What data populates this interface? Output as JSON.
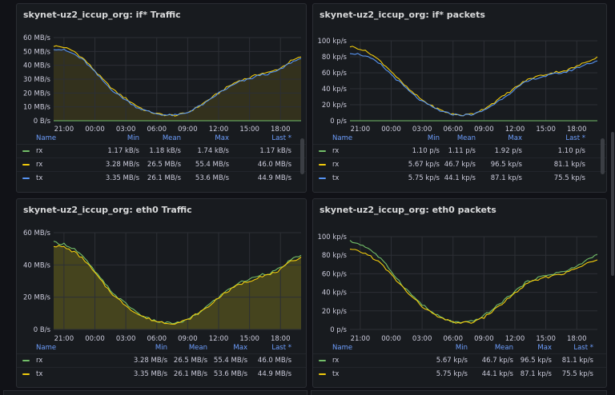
{
  "panels": [
    {
      "title": "skynet-uz2_iccup_org: if* Traffic",
      "legend": {
        "headers": [
          "Name",
          "Min",
          "Mean",
          "Max",
          "Last *"
        ],
        "rows": [
          {
            "name": "rx",
            "color": "#73bf69",
            "min": "1.17 kB/s",
            "mean": "1.18 kB/s",
            "max": "1.74 kB/s",
            "last": "1.17 kB/s"
          },
          {
            "name": "rx",
            "color": "#f2cc0c",
            "min": "3.28 MB/s",
            "mean": "26.5 MB/s",
            "max": "55.4 MB/s",
            "last": "46.0 MB/s"
          },
          {
            "name": "tx",
            "color": "#5794f2",
            "min": "3.35 MB/s",
            "mean": "26.1 MB/s",
            "max": "53.6 MB/s",
            "last": "44.9 MB/s"
          }
        ]
      },
      "y_ticks": [
        "60 MB/s",
        "50 MB/s",
        "40 MB/s",
        "30 MB/s",
        "20 MB/s",
        "10 MB/s",
        "0 B/s"
      ],
      "x_ticks": [
        "21:00",
        "00:00",
        "03:00",
        "06:00",
        "09:00",
        "12:00",
        "15:00",
        "18:00"
      ]
    },
    {
      "title": "skynet-uz2_iccup_org: if* packets",
      "legend": {
        "headers": [
          "Name",
          "Min",
          "Mean",
          "Max",
          "Last *"
        ],
        "rows": [
          {
            "name": "rx",
            "color": "#73bf69",
            "min": "1.10 p/s",
            "mean": "1.11 p/s",
            "max": "1.92 p/s",
            "last": "1.10 p/s"
          },
          {
            "name": "rx",
            "color": "#f2cc0c",
            "min": "5.67 kp/s",
            "mean": "46.7 kp/s",
            "max": "96.5 kp/s",
            "last": "81.1 kp/s"
          },
          {
            "name": "tx",
            "color": "#5794f2",
            "min": "5.75 kp/s",
            "mean": "44.1 kp/s",
            "max": "87.1 kp/s",
            "last": "75.5 kp/s"
          }
        ]
      },
      "y_ticks": [
        "100 kp/s",
        "80 kp/s",
        "60 kp/s",
        "40 kp/s",
        "20 kp/s",
        "0 p/s"
      ],
      "x_ticks": [
        "21:00",
        "00:00",
        "03:00",
        "06:00",
        "09:00",
        "12:00",
        "15:00",
        "18:00"
      ]
    },
    {
      "title": "skynet-uz2_iccup_org: eth0 Traffic",
      "legend": {
        "headers": [
          "Name",
          "Min",
          "Mean",
          "Max",
          "Last *"
        ],
        "rows": [
          {
            "name": "rx",
            "color": "#73bf69",
            "min": "3.28 MB/s",
            "mean": "26.5 MB/s",
            "max": "55.4 MB/s",
            "last": "46.0 MB/s"
          },
          {
            "name": "tx",
            "color": "#f2cc0c",
            "min": "3.35 MB/s",
            "mean": "26.1 MB/s",
            "max": "53.6 MB/s",
            "last": "44.9 MB/s"
          }
        ]
      },
      "y_ticks": [
        "60 MB/s",
        "40 MB/s",
        "20 MB/s",
        "0 B/s"
      ],
      "x_ticks": [
        "21:00",
        "00:00",
        "03:00",
        "06:00",
        "09:00",
        "12:00",
        "15:00",
        "18:00"
      ]
    },
    {
      "title": "skynet-uz2_iccup_org: eth0 packets",
      "legend": {
        "headers": [
          "Name",
          "Min",
          "Mean",
          "Max",
          "Last *"
        ],
        "rows": [
          {
            "name": "rx",
            "color": "#73bf69",
            "min": "5.67 kp/s",
            "mean": "46.7 kp/s",
            "max": "96.5 kp/s",
            "last": "81.1 kp/s"
          },
          {
            "name": "tx",
            "color": "#f2cc0c",
            "min": "5.75 kp/s",
            "mean": "44.1 kp/s",
            "max": "87.1 kp/s",
            "last": "75.5 kp/s"
          }
        ]
      },
      "y_ticks": [
        "100 kp/s",
        "80 kp/s",
        "60 kp/s",
        "40 kp/s",
        "20 kp/s",
        "0 p/s"
      ],
      "x_ticks": [
        "21:00",
        "00:00",
        "03:00",
        "06:00",
        "09:00",
        "12:00",
        "15:00",
        "18:00"
      ]
    }
  ],
  "chart_data": [
    {
      "type": "area",
      "y_unit": "MB/s",
      "ylim": [
        0,
        60
      ],
      "x": [
        "20:00",
        "21:00",
        "22:00",
        "23:00",
        "00:00",
        "01:00",
        "02:00",
        "03:00",
        "04:00",
        "05:00",
        "06:00",
        "07:00",
        "08:00",
        "09:00",
        "10:00",
        "11:00",
        "12:00",
        "13:00",
        "14:00",
        "15:00",
        "16:00",
        "17:00",
        "18:00",
        "19:00",
        "20:00"
      ],
      "series": [
        {
          "name": "rx",
          "color": "#73bf69",
          "values": [
            0,
            0,
            0,
            0,
            0,
            0,
            0,
            0,
            0,
            0,
            0,
            0,
            0,
            0,
            0,
            0,
            0,
            0,
            0,
            0,
            0,
            0,
            0,
            0,
            0
          ]
        },
        {
          "name": "rx",
          "color": "#f2cc0c",
          "values": [
            54,
            53,
            50,
            44,
            36,
            28,
            21,
            16,
            11,
            7,
            5,
            4,
            4,
            6,
            10,
            15,
            20,
            25,
            29,
            31,
            34,
            35,
            38,
            43,
            46
          ]
        },
        {
          "name": "tx",
          "color": "#5794f2",
          "values": [
            52,
            51,
            48,
            43,
            35,
            27,
            20,
            15,
            10,
            7,
            5,
            4,
            4,
            6,
            10,
            14,
            20,
            24,
            28,
            30,
            33,
            34,
            37,
            42,
            45
          ]
        }
      ]
    },
    {
      "type": "line",
      "y_unit": "kp/s",
      "ylim": [
        0,
        100
      ],
      "x": [
        "20:00",
        "21:00",
        "22:00",
        "23:00",
        "00:00",
        "01:00",
        "02:00",
        "03:00",
        "04:00",
        "05:00",
        "06:00",
        "07:00",
        "08:00",
        "09:00",
        "10:00",
        "11:00",
        "12:00",
        "13:00",
        "14:00",
        "15:00",
        "16:00",
        "17:00",
        "18:00",
        "19:00",
        "20:00"
      ],
      "series": [
        {
          "name": "rx",
          "color": "#73bf69",
          "values": [
            0,
            0,
            0,
            0,
            0,
            0,
            0,
            0,
            0,
            0,
            0,
            0,
            0,
            0,
            0,
            0,
            0,
            0,
            0,
            0,
            0,
            0,
            0,
            0,
            0
          ]
        },
        {
          "name": "rx",
          "color": "#f2cc0c",
          "values": [
            93,
            90,
            84,
            74,
            62,
            48,
            36,
            26,
            18,
            12,
            8,
            7,
            9,
            15,
            23,
            32,
            41,
            50,
            55,
            58,
            61,
            63,
            68,
            74,
            80
          ]
        },
        {
          "name": "tx",
          "color": "#5794f2",
          "values": [
            85,
            83,
            78,
            70,
            58,
            46,
            34,
            24,
            17,
            11,
            8,
            7,
            8,
            13,
            21,
            30,
            39,
            48,
            53,
            56,
            59,
            61,
            66,
            71,
            75
          ]
        }
      ]
    },
    {
      "type": "area",
      "y_unit": "MB/s",
      "ylim": [
        0,
        60
      ],
      "x": [
        "20:00",
        "21:00",
        "22:00",
        "23:00",
        "00:00",
        "01:00",
        "02:00",
        "03:00",
        "04:00",
        "05:00",
        "06:00",
        "07:00",
        "08:00",
        "09:00",
        "10:00",
        "11:00",
        "12:00",
        "13:00",
        "14:00",
        "15:00",
        "16:00",
        "17:00",
        "18:00",
        "19:00",
        "20:00"
      ],
      "series": [
        {
          "name": "rx",
          "color": "#73bf69",
          "values": [
            54,
            53,
            50,
            44,
            36,
            28,
            21,
            16,
            11,
            7,
            5,
            4,
            4,
            6,
            10,
            15,
            20,
            25,
            29,
            31,
            34,
            35,
            38,
            43,
            46
          ]
        },
        {
          "name": "tx",
          "color": "#f2cc0c",
          "values": [
            52,
            51,
            48,
            43,
            35,
            27,
            20,
            15,
            10,
            7,
            5,
            4,
            4,
            6,
            10,
            14,
            20,
            24,
            28,
            30,
            33,
            34,
            37,
            42,
            45
          ]
        }
      ]
    },
    {
      "type": "line",
      "y_unit": "kp/s",
      "ylim": [
        0,
        100
      ],
      "x": [
        "20:00",
        "21:00",
        "22:00",
        "23:00",
        "00:00",
        "01:00",
        "02:00",
        "03:00",
        "04:00",
        "05:00",
        "06:00",
        "07:00",
        "08:00",
        "09:00",
        "10:00",
        "11:00",
        "12:00",
        "13:00",
        "14:00",
        "15:00",
        "16:00",
        "17:00",
        "18:00",
        "19:00",
        "20:00"
      ],
      "series": [
        {
          "name": "rx",
          "color": "#73bf69",
          "values": [
            95,
            92,
            86,
            76,
            63,
            49,
            37,
            27,
            18,
            12,
            8,
            7,
            9,
            15,
            23,
            32,
            41,
            50,
            55,
            58,
            61,
            63,
            68,
            75,
            81
          ]
        },
        {
          "name": "tx",
          "color": "#f2cc0c",
          "values": [
            86,
            84,
            79,
            71,
            59,
            47,
            35,
            25,
            17,
            11,
            8,
            7,
            8,
            13,
            21,
            30,
            39,
            48,
            53,
            56,
            59,
            61,
            66,
            71,
            75
          ]
        }
      ]
    }
  ]
}
